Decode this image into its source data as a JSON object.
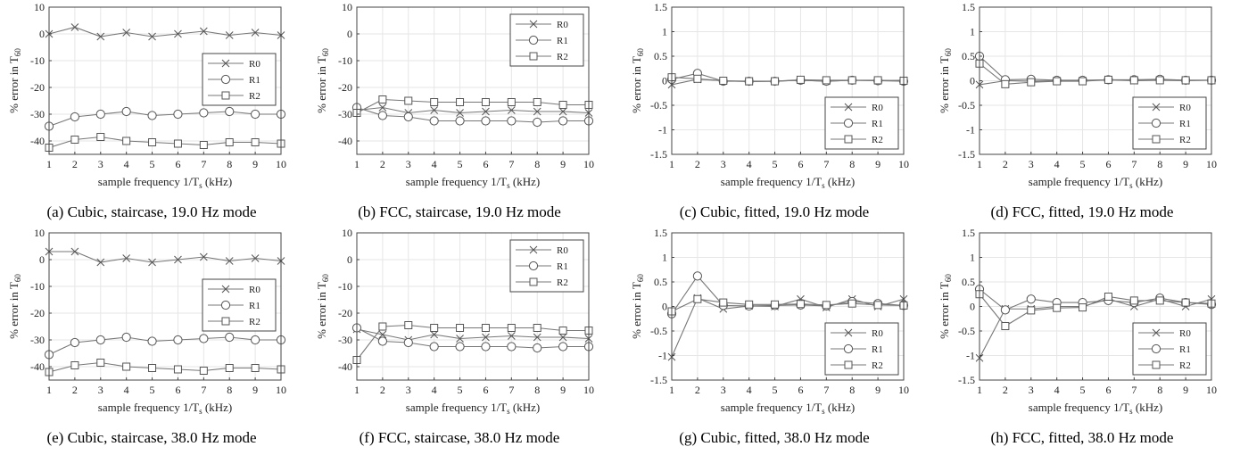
{
  "figure": {
    "xlabel": "sample frequency 1/T",
    "xlabel_sub": "s",
    "xlabel_unit": " (kHz)",
    "ylabel": "% error in T",
    "ylabel_sub": "60",
    "series_names": [
      "R0",
      "R1",
      "R2"
    ],
    "line_color": "#777777",
    "marker_color": "#555555"
  },
  "chart_data": [
    {
      "id": "a",
      "type": "line",
      "caption": "(a) Cubic, staircase, 19.0 Hz mode",
      "x": [
        1,
        2,
        3,
        4,
        5,
        6,
        7,
        8,
        9,
        10
      ],
      "xlim": [
        1,
        10
      ],
      "ylim": [
        -45,
        10
      ],
      "yticks": [
        "10",
        "0",
        "-10",
        "-20",
        "-30",
        "-40"
      ],
      "ytick_values": [
        10,
        0,
        -10,
        -20,
        -30,
        -40
      ],
      "xticks": [
        "1",
        "2",
        "3",
        "4",
        "5",
        "6",
        "7",
        "8",
        "9",
        "10"
      ],
      "grid": true,
      "legend": "right-middle",
      "series": [
        {
          "name": "R0",
          "marker": "x",
          "values": [
            0,
            2.5,
            -1,
            0.5,
            -1,
            0,
            1,
            -0.5,
            0.5,
            -0.5
          ]
        },
        {
          "name": "R1",
          "marker": "o",
          "values": [
            -34.5,
            -31,
            -30,
            -29,
            -30.5,
            -30,
            -29.5,
            -29,
            -30,
            -30
          ]
        },
        {
          "name": "R2",
          "marker": "s",
          "values": [
            -42.5,
            -39.5,
            -38.5,
            -40,
            -40.5,
            -41,
            -41.5,
            -40.5,
            -40.5,
            -41
          ]
        }
      ]
    },
    {
      "id": "b",
      "type": "line",
      "caption": "(b) FCC, staircase, 19.0 Hz mode",
      "x": [
        1,
        2,
        3,
        4,
        5,
        6,
        7,
        8,
        9,
        10
      ],
      "xlim": [
        1,
        10
      ],
      "ylim": [
        -45,
        10
      ],
      "yticks": [
        "10",
        "0",
        "-10",
        "-20",
        "-30",
        "-40"
      ],
      "ytick_values": [
        10,
        0,
        -10,
        -20,
        -30,
        -40
      ],
      "xticks": [
        "1",
        "2",
        "3",
        "4",
        "5",
        "6",
        "7",
        "8",
        "9",
        "10"
      ],
      "grid": true,
      "legend": "top-right",
      "series": [
        {
          "name": "R0",
          "marker": "x",
          "values": [
            -28.5,
            -27.5,
            -29.5,
            -28.5,
            -29.5,
            -29,
            -28.5,
            -29,
            -29,
            -29.5
          ]
        },
        {
          "name": "R1",
          "marker": "o",
          "values": [
            -27.5,
            -30.5,
            -31,
            -32.5,
            -32.5,
            -32.5,
            -32.5,
            -33,
            -32.5,
            -32.5
          ]
        },
        {
          "name": "R2",
          "marker": "s",
          "values": [
            -29.5,
            -24.5,
            -25,
            -25.5,
            -25.5,
            -25.5,
            -25.5,
            -25.5,
            -26.5,
            -26.5
          ]
        }
      ]
    },
    {
      "id": "c",
      "type": "line",
      "caption": "(c) Cubic, fitted, 19.0 Hz mode",
      "x": [
        1,
        2,
        3,
        4,
        5,
        6,
        7,
        8,
        9,
        10
      ],
      "xlim": [
        1,
        10
      ],
      "ylim": [
        -1.5,
        1.5
      ],
      "yticks": [
        "1.5",
        "1",
        "0.5",
        "0",
        "-0.5",
        "-1",
        "-1.5"
      ],
      "ytick_values": [
        1.5,
        1,
        0.5,
        0,
        -0.5,
        -1,
        -1.5
      ],
      "xticks": [
        "1",
        "2",
        "3",
        "4",
        "5",
        "6",
        "7",
        "8",
        "9",
        "10"
      ],
      "grid": true,
      "legend": "bottom-right",
      "series": [
        {
          "name": "R0",
          "marker": "x",
          "values": [
            -0.08,
            0.03,
            0,
            -0.02,
            -0.01,
            0.01,
            -0.01,
            0.01,
            0,
            0.01
          ]
        },
        {
          "name": "R1",
          "marker": "o",
          "values": [
            0.03,
            0.15,
            -0.01,
            -0.01,
            -0.01,
            0.01,
            -0.01,
            0.01,
            0,
            -0.01
          ]
        },
        {
          "name": "R2",
          "marker": "s",
          "values": [
            0.07,
            0.04,
            0,
            -0.01,
            -0.01,
            0.02,
            0.01,
            0.01,
            0.01,
            0
          ]
        }
      ]
    },
    {
      "id": "d",
      "type": "line",
      "caption": "(d) FCC, fitted, 19.0 Hz mode",
      "x": [
        1,
        2,
        3,
        4,
        5,
        6,
        7,
        8,
        9,
        10
      ],
      "xlim": [
        1,
        10
      ],
      "ylim": [
        -1.5,
        1.5
      ],
      "yticks": [
        "1.5",
        "1",
        "0.5",
        "0",
        "-0.5",
        "-1",
        "-1.5"
      ],
      "ytick_values": [
        1.5,
        1,
        0.5,
        0,
        -0.5,
        -1,
        -1.5
      ],
      "xticks": [
        "1",
        "2",
        "3",
        "4",
        "5",
        "6",
        "7",
        "8",
        "9",
        "10"
      ],
      "grid": true,
      "legend": "bottom-right",
      "series": [
        {
          "name": "R0",
          "marker": "x",
          "values": [
            -0.08,
            0,
            -0.01,
            0,
            0,
            0.02,
            0,
            0.01,
            0,
            0.01
          ]
        },
        {
          "name": "R1",
          "marker": "o",
          "values": [
            0.5,
            0.02,
            0.03,
            0.01,
            0.01,
            0.02,
            0.02,
            0.03,
            0.01,
            0.01
          ]
        },
        {
          "name": "R2",
          "marker": "s",
          "values": [
            0.35,
            -0.07,
            -0.03,
            -0.01,
            -0.01,
            0.02,
            0.01,
            0.01,
            0.01,
            0.01
          ]
        }
      ]
    },
    {
      "id": "e",
      "type": "line",
      "caption": "(e) Cubic, staircase, 38.0 Hz mode",
      "x": [
        1,
        2,
        3,
        4,
        5,
        6,
        7,
        8,
        9,
        10
      ],
      "xlim": [
        1,
        10
      ],
      "ylim": [
        -45,
        10
      ],
      "yticks": [
        "10",
        "0",
        "-10",
        "-20",
        "-30",
        "-40"
      ],
      "ytick_values": [
        10,
        0,
        -10,
        -20,
        -30,
        -40
      ],
      "xticks": [
        "1",
        "2",
        "3",
        "4",
        "5",
        "6",
        "7",
        "8",
        "9",
        "10"
      ],
      "grid": true,
      "legend": "right-middle",
      "series": [
        {
          "name": "R0",
          "marker": "x",
          "values": [
            3,
            3,
            -1,
            0.5,
            -1,
            0,
            1,
            -0.5,
            0.5,
            -0.5
          ]
        },
        {
          "name": "R1",
          "marker": "o",
          "values": [
            -35.5,
            -31,
            -30,
            -29,
            -30.5,
            -30,
            -29.5,
            -29,
            -30,
            -30
          ]
        },
        {
          "name": "R2",
          "marker": "s",
          "values": [
            -42,
            -39.5,
            -38.5,
            -40,
            -40.5,
            -41,
            -41.5,
            -40.5,
            -40.5,
            -41
          ]
        }
      ]
    },
    {
      "id": "f",
      "type": "line",
      "caption": "(f) FCC, staircase, 38.0 Hz mode",
      "x": [
        1,
        2,
        3,
        4,
        5,
        6,
        7,
        8,
        9,
        10
      ],
      "xlim": [
        1,
        10
      ],
      "ylim": [
        -45,
        10
      ],
      "yticks": [
        "10",
        "0",
        "-10",
        "-20",
        "-30",
        "-40"
      ],
      "ytick_values": [
        10,
        0,
        -10,
        -20,
        -30,
        -40
      ],
      "xticks": [
        "1",
        "2",
        "3",
        "4",
        "5",
        "6",
        "7",
        "8",
        "9",
        "10"
      ],
      "grid": true,
      "legend": "top-right",
      "series": [
        {
          "name": "R0",
          "marker": "x",
          "values": [
            -26,
            -28,
            -30,
            -28,
            -29.5,
            -29,
            -28.5,
            -29,
            -29,
            -29.5
          ]
        },
        {
          "name": "R1",
          "marker": "o",
          "values": [
            -25.5,
            -30.5,
            -31,
            -32.5,
            -32.5,
            -32.5,
            -32.5,
            -33,
            -32.5,
            -32.5
          ]
        },
        {
          "name": "R2",
          "marker": "s",
          "values": [
            -37.5,
            -25,
            -24.5,
            -25.5,
            -25.5,
            -25.5,
            -25.5,
            -25.5,
            -26.5,
            -26.5
          ]
        }
      ]
    },
    {
      "id": "g",
      "type": "line",
      "caption": "(g) Cubic, fitted, 38.0 Hz mode",
      "x": [
        1,
        2,
        3,
        4,
        5,
        6,
        7,
        8,
        9,
        10
      ],
      "xlim": [
        1,
        10
      ],
      "ylim": [
        -1.5,
        1.5
      ],
      "yticks": [
        "1.5",
        "1",
        "0.5",
        "0",
        "-0.5",
        "-1",
        "-1.5"
      ],
      "ytick_values": [
        1.5,
        1,
        0.5,
        0,
        -0.5,
        -1,
        -1.5
      ],
      "xticks": [
        "1",
        "2",
        "3",
        "4",
        "5",
        "6",
        "7",
        "8",
        "9",
        "10"
      ],
      "grid": true,
      "legend": "bottom-right",
      "series": [
        {
          "name": "R0",
          "marker": "x",
          "values": [
            -1.03,
            0.17,
            -0.05,
            0.01,
            0,
            0.15,
            -0.02,
            0.15,
            0,
            0.15
          ]
        },
        {
          "name": "R1",
          "marker": "o",
          "values": [
            -0.15,
            0.62,
            0.02,
            0.01,
            0.02,
            0.03,
            0.01,
            0.1,
            0.06,
            0.02
          ]
        },
        {
          "name": "R2",
          "marker": "s",
          "values": [
            -0.1,
            0.15,
            0.08,
            0.04,
            0.04,
            0.05,
            0.03,
            0.06,
            0.03,
            0.02
          ]
        }
      ]
    },
    {
      "id": "h",
      "type": "line",
      "caption": "(h) FCC, fitted, 38.0 Hz mode",
      "x": [
        1,
        2,
        3,
        4,
        5,
        6,
        7,
        8,
        9,
        10
      ],
      "xlim": [
        1,
        10
      ],
      "ylim": [
        -1.5,
        1.5
      ],
      "yticks": [
        "1.5",
        "1",
        "0.5",
        "0",
        "-0.5",
        "-1",
        "-1.5"
      ],
      "ytick_values": [
        1.5,
        1,
        0.5,
        0,
        -0.5,
        -1,
        -1.5
      ],
      "xticks": [
        "1",
        "2",
        "3",
        "4",
        "5",
        "6",
        "7",
        "8",
        "9",
        "10"
      ],
      "grid": true,
      "legend": "bottom-right",
      "series": [
        {
          "name": "R0",
          "marker": "x",
          "values": [
            -1.05,
            -0.05,
            -0.05,
            0,
            0,
            0.15,
            0,
            0.15,
            0,
            0.15
          ]
        },
        {
          "name": "R1",
          "marker": "o",
          "values": [
            0.35,
            -0.07,
            0.15,
            0.08,
            0.08,
            0.12,
            0.08,
            0.17,
            0.08,
            0.04
          ]
        },
        {
          "name": "R2",
          "marker": "s",
          "values": [
            0.25,
            -0.4,
            -0.08,
            -0.03,
            -0.02,
            0.2,
            0.12,
            0.12,
            0.08,
            0.06
          ]
        }
      ]
    }
  ]
}
